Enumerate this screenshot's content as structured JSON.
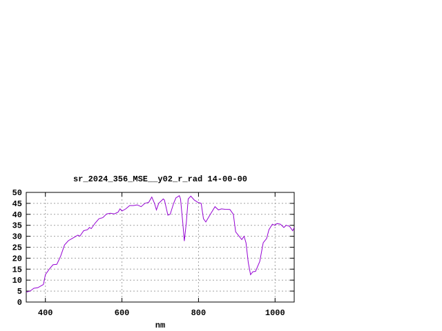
{
  "chart_data": {
    "type": "line",
    "title": "sr_2024_356_MSE__y02_r_rad 14-00-00",
    "xlabel": "nm",
    "ylabel": "",
    "xlim": [
      350,
      1050
    ],
    "ylim": [
      0,
      50
    ],
    "xticks": [
      400,
      600,
      800,
      1000
    ],
    "yticks": [
      0,
      5,
      10,
      15,
      20,
      25,
      30,
      35,
      40,
      45,
      50
    ],
    "grid": true,
    "line_color": "#9400d3",
    "series": [
      {
        "x": [
          350,
          360,
          370,
          380,
          390,
          395,
          400,
          410,
          420,
          430,
          440,
          450,
          460,
          470,
          480,
          485,
          490,
          500,
          510,
          515,
          520,
          530,
          540,
          550,
          560,
          570,
          580,
          590,
          595,
          600,
          610,
          620,
          630,
          640,
          650,
          660,
          670,
          678,
          685,
          690,
          696,
          708,
          711,
          720,
          726,
          735,
          741,
          750,
          753,
          759,
          763,
          768,
          773,
          780,
          789,
          798,
          807,
          813,
          819,
          831,
          843,
          852,
          860,
          869,
          882,
          891,
          897,
          906,
          913,
          919,
          924,
          930,
          936,
          942,
          949,
          960,
          969,
          978,
          984,
          993,
          999,
          1005,
          1014,
          1023,
          1029,
          1038,
          1046,
          1050
        ],
        "y": [
          4.5,
          5,
          6.3,
          6.5,
          7.5,
          8,
          12.5,
          15,
          17,
          17.2,
          21,
          26,
          28,
          29,
          30,
          30.5,
          30,
          32.5,
          33,
          34,
          33.5,
          36,
          38,
          38.5,
          40.2,
          40.5,
          40.2,
          41,
          42.5,
          41.5,
          42.5,
          44,
          44,
          44.3,
          43.5,
          45,
          45.5,
          47.9,
          45,
          42,
          45,
          47,
          46.5,
          39.6,
          40,
          45,
          47.5,
          48.5,
          47,
          36,
          27.8,
          36,
          47,
          48.3,
          46.5,
          45.5,
          45,
          38,
          36.5,
          40,
          43.5,
          42,
          42.5,
          42.3,
          42.2,
          40,
          32,
          30,
          28.5,
          30,
          27,
          18,
          12.5,
          13.8,
          14,
          18.5,
          27,
          29,
          33,
          35.5,
          35,
          35.8,
          35.5,
          34,
          35,
          34.5,
          32.5,
          34
        ]
      }
    ]
  }
}
